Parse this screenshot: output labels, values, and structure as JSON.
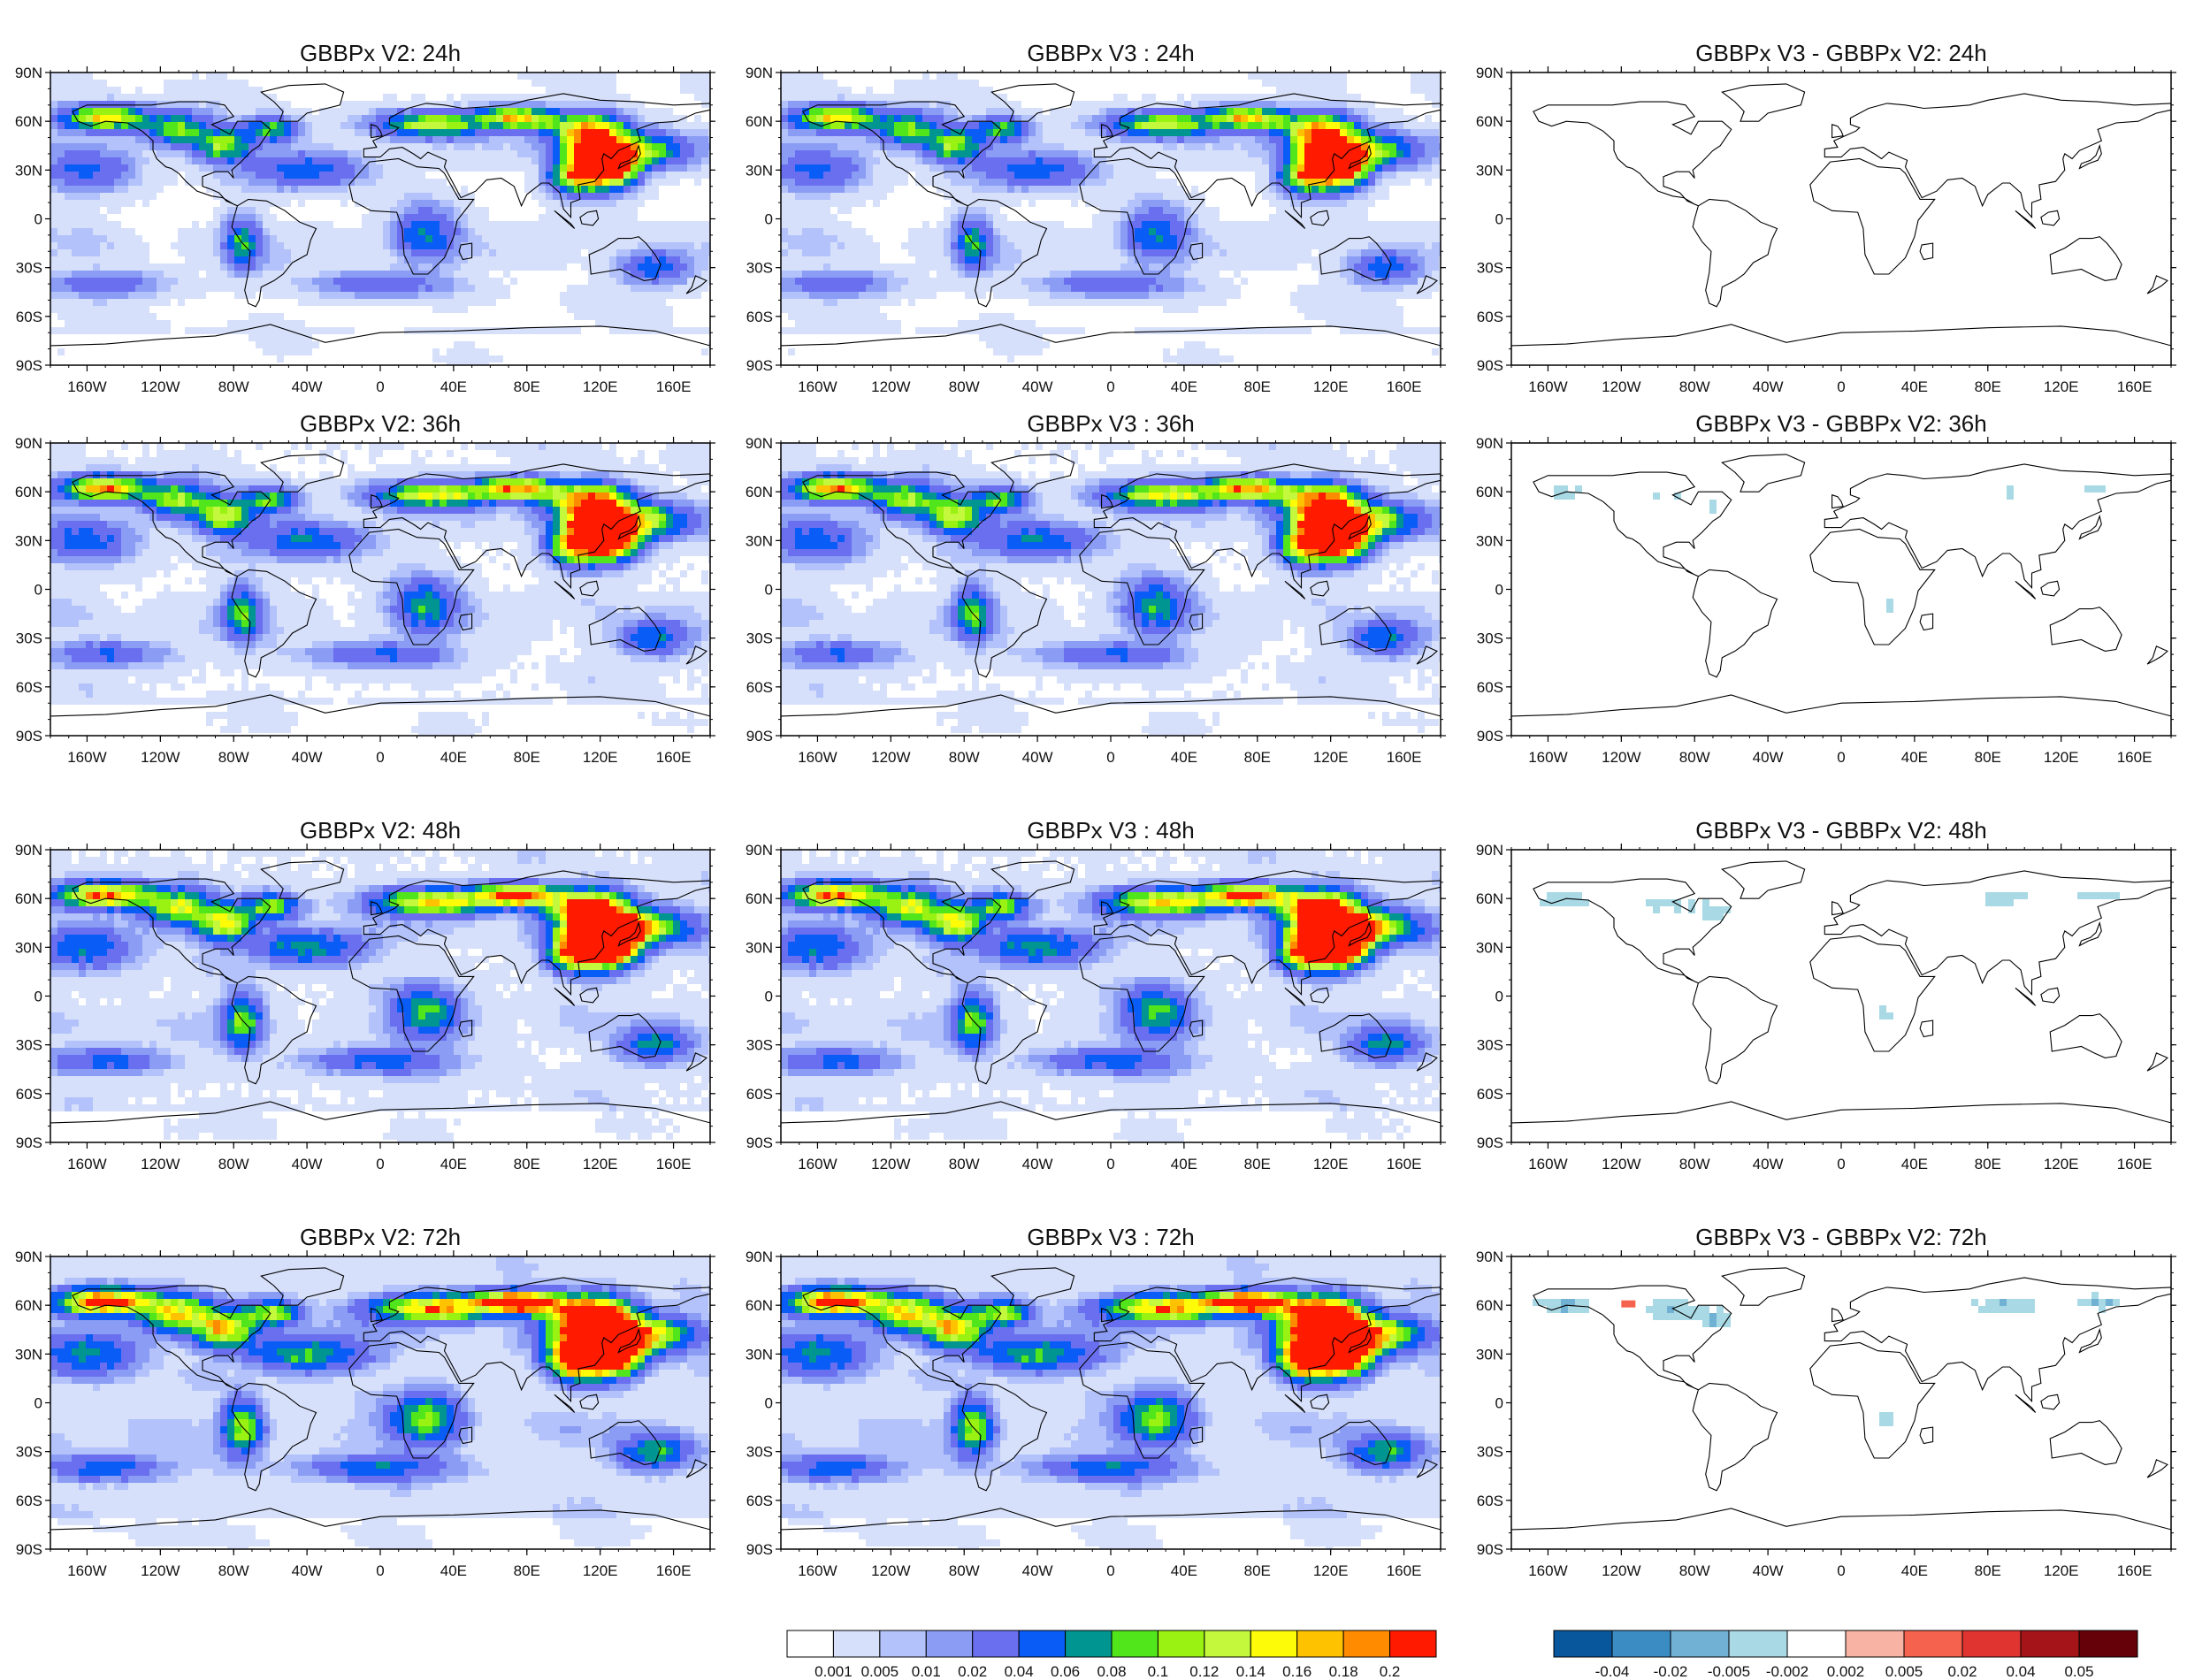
{
  "figure": {
    "panels": [
      {
        "title": "GBBPx V2: 24h",
        "kind": "field",
        "seed": 11,
        "intensity": 1.0
      },
      {
        "title": "GBBPx V3 : 24h",
        "kind": "field",
        "seed": 11,
        "intensity": 1.0
      },
      {
        "title": "GBBPx V3 - GBBPx V2: 24h",
        "kind": "diff",
        "seed": 21,
        "intensity": 0.35
      },
      {
        "title": "GBBPx V2: 36h",
        "kind": "field",
        "seed": 12,
        "intensity": 1.15
      },
      {
        "title": "GBBPx V3 : 36h",
        "kind": "field",
        "seed": 12,
        "intensity": 1.15
      },
      {
        "title": "GBBPx V3 - GBBPx V2: 36h",
        "kind": "diff",
        "seed": 22,
        "intensity": 0.55
      },
      {
        "title": "GBBPx V2: 48h",
        "kind": "field",
        "seed": 13,
        "intensity": 1.3
      },
      {
        "title": "GBBPx V3 : 48h",
        "kind": "field",
        "seed": 13,
        "intensity": 1.3
      },
      {
        "title": "GBBPx V3 - GBBPx V2: 48h",
        "kind": "diff",
        "seed": 23,
        "intensity": 0.75
      },
      {
        "title": "GBBPx V2: 72h",
        "kind": "field",
        "seed": 14,
        "intensity": 1.5
      },
      {
        "title": "GBBPx V3 : 72h",
        "kind": "field",
        "seed": 14,
        "intensity": 1.5
      },
      {
        "title": "GBBPx V3 - GBBPx V2: 72h",
        "kind": "diff",
        "seed": 24,
        "intensity": 1.0
      }
    ],
    "lat_ticks": [
      "90N",
      "60N",
      "30N",
      "0",
      "30S",
      "60S",
      "90S"
    ],
    "lon_ticks": [
      "160W",
      "120W",
      "80W",
      "40W",
      "0",
      "40E",
      "80E",
      "120E",
      "160E"
    ],
    "lon_tick_values": [
      -160,
      -120,
      -80,
      -40,
      0,
      40,
      80,
      120,
      160
    ],
    "colorbar_field": {
      "colors": [
        "#ffffff",
        "#d6e0fa",
        "#b3c2fa",
        "#8a9cf4",
        "#6a6ff0",
        "#0a5cf6",
        "#009590",
        "#51e51b",
        "#99f212",
        "#c3f83c",
        "#fdfb08",
        "#ffc200",
        "#ff8b00",
        "#ff1a00"
      ],
      "labels": [
        "0.001",
        "0.005",
        "0.01",
        "0.02",
        "0.04",
        "0.06",
        "0.08",
        "0.1",
        "0.12",
        "0.14",
        "0.16",
        "0.18",
        "0.2"
      ]
    },
    "colorbar_diff": {
      "colors": [
        "#08569b",
        "#3c8cc4",
        "#71b1d3",
        "#a8d9e5",
        "#ffffff",
        "#f8b3a4",
        "#f5624d",
        "#df3430",
        "#a51418",
        "#650209"
      ],
      "labels": [
        "-0.04",
        "-0.02",
        "-0.005",
        "-0.002",
        "0.002",
        "0.005",
        "0.02",
        "0.04",
        "0.05"
      ]
    }
  }
}
